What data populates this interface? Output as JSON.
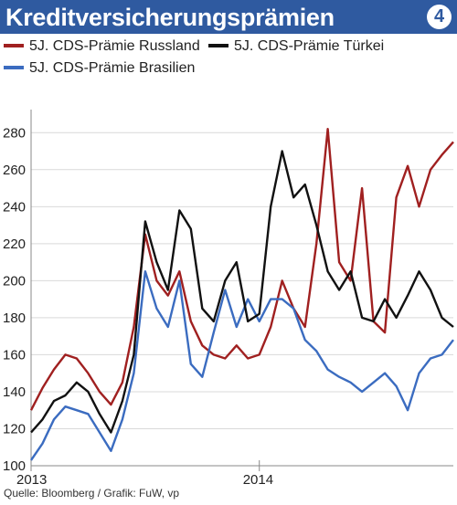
{
  "header": {
    "title": "Kreditversicherungsprämien",
    "badge": "4"
  },
  "legend": [
    {
      "label": "5J. CDS-Prämie Russland",
      "color": "#a02020"
    },
    {
      "label": "5J. CDS-Prämie Türkei",
      "color": "#111111"
    },
    {
      "label": "5J. CDS-Prämie Brasilien",
      "color": "#3b6cc0"
    }
  ],
  "footer": {
    "source": "Quelle: Bloomberg / Grafik: FuW, vp"
  },
  "chart_data": {
    "type": "line",
    "title": "Kreditversicherungsprämien",
    "xlabel": "",
    "ylabel": "",
    "x_tick_labels": [
      "2013",
      "2014"
    ],
    "x_range": [
      2013.0,
      2014.85
    ],
    "ylim": [
      100,
      290
    ],
    "y_ticks": [
      100,
      120,
      140,
      160,
      180,
      200,
      220,
      240,
      260,
      280
    ],
    "grid": "horizontal",
    "legend_position": "top",
    "x": [
      2013.0,
      2013.05,
      2013.1,
      2013.15,
      2013.2,
      2013.25,
      2013.3,
      2013.35,
      2013.4,
      2013.45,
      2013.5,
      2013.55,
      2013.6,
      2013.65,
      2013.7,
      2013.75,
      2013.8,
      2013.85,
      2013.9,
      2013.95,
      2014.0,
      2014.05,
      2014.1,
      2014.15,
      2014.2,
      2014.25,
      2014.3,
      2014.35,
      2014.4,
      2014.45,
      2014.5,
      2014.55,
      2014.6,
      2014.65,
      2014.7,
      2014.75,
      2014.8,
      2014.85
    ],
    "series": [
      {
        "name": "5J. CDS-Prämie Russland",
        "color": "#a02020",
        "values": [
          130,
          142,
          152,
          160,
          158,
          150,
          140,
          133,
          145,
          175,
          225,
          200,
          192,
          205,
          178,
          165,
          160,
          158,
          165,
          158,
          160,
          175,
          200,
          185,
          175,
          220,
          282,
          210,
          200,
          250,
          178,
          172,
          245,
          262,
          240,
          260,
          268,
          275
        ]
      },
      {
        "name": "5J. CDS-Prämie Türkei",
        "color": "#111111",
        "values": [
          118,
          125,
          135,
          138,
          145,
          140,
          128,
          118,
          135,
          160,
          232,
          210,
          195,
          238,
          228,
          185,
          178,
          200,
          210,
          178,
          182,
          240,
          270,
          245,
          252,
          230,
          205,
          195,
          205,
          180,
          178,
          190,
          180,
          192,
          205,
          195,
          180,
          175
        ]
      },
      {
        "name": "5J. CDS-Prämie Brasilien",
        "color": "#3b6cc0",
        "values": [
          103,
          112,
          125,
          132,
          130,
          128,
          118,
          108,
          125,
          150,
          205,
          185,
          175,
          200,
          155,
          148,
          172,
          195,
          175,
          190,
          178,
          190,
          190,
          185,
          168,
          162,
          152,
          148,
          145,
          140,
          145,
          150,
          143,
          130,
          150,
          158,
          160,
          168
        ]
      }
    ]
  }
}
